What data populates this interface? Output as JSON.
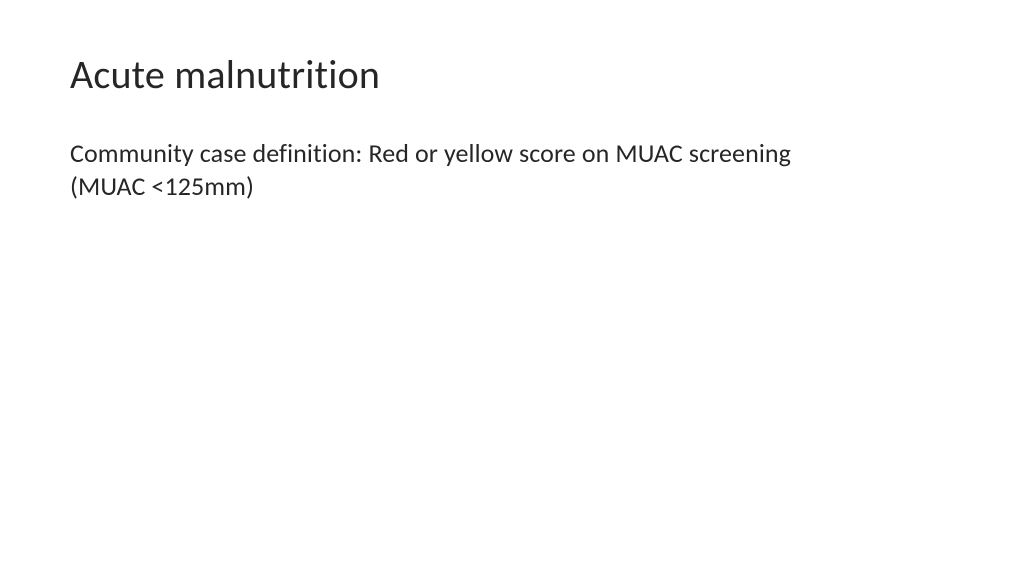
{
  "slide": {
    "title": "Acute malnutrition",
    "body_line1": "Community case definition: Red or yellow score on MUAC screening",
    "body_line2": "(MUAC <125mm)"
  },
  "style": {
    "background_color": "#ffffff",
    "text_color": "#262626",
    "title_fontsize": 40,
    "body_fontsize": 26,
    "font_family": "Calibri"
  }
}
